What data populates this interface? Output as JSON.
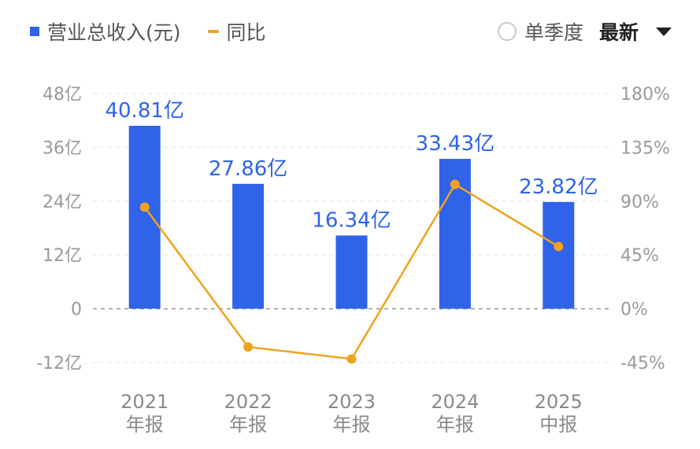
{
  "legend": {
    "revenue_label": "营业总收入(元)",
    "yoy_label": "同比"
  },
  "controls": {
    "quarter_label": "单季度",
    "period_label": "最新"
  },
  "colors": {
    "bar": "#2f63ea",
    "line": "#f0a21c",
    "label": "#2f63ea"
  },
  "chart_data": {
    "type": "bar+line",
    "categories": [
      {
        "year": "2021",
        "period": "年报"
      },
      {
        "year": "2022",
        "period": "年报"
      },
      {
        "year": "2023",
        "period": "年报"
      },
      {
        "year": "2024",
        "period": "年报"
      },
      {
        "year": "2025",
        "period": "中报"
      }
    ],
    "series": [
      {
        "name": "营业总收入(元)",
        "type": "bar",
        "axis": "left",
        "unit": "亿",
        "values": [
          40.81,
          27.86,
          16.34,
          33.43,
          23.82
        ],
        "labels": [
          "40.81亿",
          "27.86亿",
          "16.34亿",
          "33.43亿",
          "23.82亿"
        ]
      },
      {
        "name": "同比",
        "type": "line",
        "axis": "right",
        "unit": "%",
        "values": [
          85,
          -32,
          -42,
          104,
          52
        ]
      }
    ],
    "y_left": {
      "ticks": [
        48,
        36,
        24,
        12,
        0,
        -12
      ],
      "tick_labels": [
        "48亿",
        "36亿",
        "24亿",
        "12亿",
        "0",
        "-12亿"
      ],
      "range": [
        -12,
        48
      ]
    },
    "y_right": {
      "ticks": [
        180,
        135,
        90,
        45,
        0,
        -45
      ],
      "tick_labels": [
        "180%",
        "135%",
        "90%",
        "45%",
        "0%",
        "-45%"
      ],
      "range": [
        -45,
        180
      ]
    },
    "grid": true
  }
}
